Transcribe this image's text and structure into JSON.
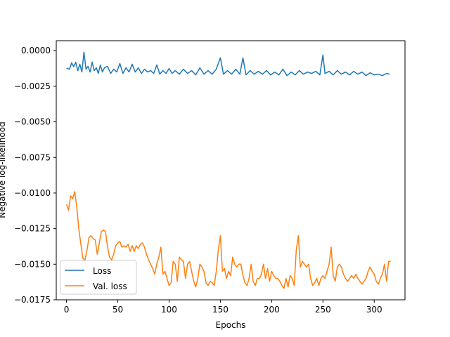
{
  "chart_data": {
    "type": "line",
    "title": "",
    "xlabel": "Epochs",
    "ylabel": "Negative log-likelihood",
    "xlim": [
      -10,
      330
    ],
    "ylim": [
      -0.0175,
      0.0007
    ],
    "xticks": [
      0,
      50,
      100,
      150,
      200,
      250,
      300
    ],
    "xtick_labels": [
      "0",
      "50",
      "100",
      "150",
      "200",
      "250",
      "300"
    ],
    "yticks": [
      0.0,
      -0.0025,
      -0.005,
      -0.0075,
      -0.01,
      -0.0125,
      -0.015,
      -0.0175
    ],
    "ytick_labels": [
      "0.0000",
      "−0.0025",
      "−0.0050",
      "−0.0075",
      "−0.0100",
      "−0.0125",
      "−0.0150",
      "−0.0175"
    ],
    "grid": false,
    "legend": {
      "placement": "lower-left"
    },
    "series": [
      {
        "name": "Loss",
        "color": "#1f77b4",
        "points": [
          [
            0,
            -0.00123
          ],
          [
            3,
            -0.0013
          ],
          [
            5,
            -0.00085
          ],
          [
            7,
            -0.00112
          ],
          [
            9,
            -0.00082
          ],
          [
            11,
            -0.0014
          ],
          [
            13,
            -0.00095
          ],
          [
            15,
            -0.0015
          ],
          [
            17,
            -0.0001
          ],
          [
            19,
            -0.0013
          ],
          [
            21,
            -0.0011
          ],
          [
            23,
            -0.0015
          ],
          [
            25,
            -0.0008
          ],
          [
            27,
            -0.0014
          ],
          [
            29,
            -0.0012
          ],
          [
            31,
            -0.0016
          ],
          [
            33,
            -0.001
          ],
          [
            35,
            -0.0015
          ],
          [
            37,
            -0.0012
          ],
          [
            40,
            -0.0011
          ],
          [
            43,
            -0.0016
          ],
          [
            46,
            -0.0013
          ],
          [
            49,
            -0.0015
          ],
          [
            52,
            -0.0009
          ],
          [
            55,
            -0.0016
          ],
          [
            58,
            -0.0012
          ],
          [
            61,
            -0.0015
          ],
          [
            64,
            -0.00095
          ],
          [
            67,
            -0.0015
          ],
          [
            70,
            -0.0012
          ],
          [
            73,
            -0.0016
          ],
          [
            76,
            -0.0013
          ],
          [
            79,
            -0.0015
          ],
          [
            82,
            -0.0014
          ],
          [
            85,
            -0.0016
          ],
          [
            88,
            -0.001
          ],
          [
            91,
            -0.00165
          ],
          [
            94,
            -0.0014
          ],
          [
            97,
            -0.0016
          ],
          [
            100,
            -0.00125
          ],
          [
            103,
            -0.0016
          ],
          [
            106,
            -0.0014
          ],
          [
            110,
            -0.00165
          ],
          [
            114,
            -0.0013
          ],
          [
            118,
            -0.0016
          ],
          [
            122,
            -0.0014
          ],
          [
            126,
            -0.0017
          ],
          [
            130,
            -0.0012
          ],
          [
            134,
            -0.00165
          ],
          [
            138,
            -0.0014
          ],
          [
            142,
            -0.00165
          ],
          [
            146,
            -0.0013
          ],
          [
            150,
            -0.0005
          ],
          [
            153,
            -0.00165
          ],
          [
            157,
            -0.0014
          ],
          [
            161,
            -0.00165
          ],
          [
            165,
            -0.0013
          ],
          [
            169,
            -0.00165
          ],
          [
            172,
            -0.0005
          ],
          [
            175,
            -0.0017
          ],
          [
            179,
            -0.0014
          ],
          [
            183,
            -0.00165
          ],
          [
            187,
            -0.00145
          ],
          [
            191,
            -0.00165
          ],
          [
            195,
            -0.0014
          ],
          [
            199,
            -0.0017
          ],
          [
            203,
            -0.0015
          ],
          [
            207,
            -0.0017
          ],
          [
            211,
            -0.0013
          ],
          [
            215,
            -0.00175
          ],
          [
            219,
            -0.0015
          ],
          [
            223,
            -0.0017
          ],
          [
            227,
            -0.0014
          ],
          [
            231,
            -0.00165
          ],
          [
            235,
            -0.0015
          ],
          [
            239,
            -0.0016
          ],
          [
            243,
            -0.00145
          ],
          [
            247,
            -0.0017
          ],
          [
            250,
            -0.0003
          ],
          [
            252,
            -0.0016
          ],
          [
            256,
            -0.00145
          ],
          [
            260,
            -0.0017
          ],
          [
            264,
            -0.0014
          ],
          [
            268,
            -0.00165
          ],
          [
            272,
            -0.0015
          ],
          [
            276,
            -0.0017
          ],
          [
            280,
            -0.00145
          ],
          [
            284,
            -0.00165
          ],
          [
            288,
            -0.0015
          ],
          [
            292,
            -0.00175
          ],
          [
            296,
            -0.00155
          ],
          [
            300,
            -0.0017
          ],
          [
            304,
            -0.00165
          ],
          [
            308,
            -0.00175
          ],
          [
            312,
            -0.0016
          ],
          [
            315,
            -0.00165
          ]
        ]
      },
      {
        "name": "Val. loss",
        "color": "#ff7f0e",
        "points": [
          [
            0,
            -0.0108
          ],
          [
            2,
            -0.0112
          ],
          [
            4,
            -0.0102
          ],
          [
            6,
            -0.0104
          ],
          [
            8,
            -0.0099
          ],
          [
            10,
            -0.011
          ],
          [
            12,
            -0.0125
          ],
          [
            14,
            -0.0136
          ],
          [
            16,
            -0.0146
          ],
          [
            18,
            -0.0147
          ],
          [
            20,
            -0.014
          ],
          [
            22,
            -0.0131
          ],
          [
            24,
            -0.013
          ],
          [
            26,
            -0.0132
          ],
          [
            28,
            -0.0133
          ],
          [
            30,
            -0.0143
          ],
          [
            32,
            -0.0135
          ],
          [
            34,
            -0.0127
          ],
          [
            36,
            -0.0126
          ],
          [
            38,
            -0.0127
          ],
          [
            40,
            -0.0138
          ],
          [
            42,
            -0.0145
          ],
          [
            44,
            -0.0147
          ],
          [
            46,
            -0.0143
          ],
          [
            48,
            -0.0137
          ],
          [
            50,
            -0.0135
          ],
          [
            52,
            -0.0134
          ],
          [
            54,
            -0.0138
          ],
          [
            56,
            -0.0137
          ],
          [
            58,
            -0.0138
          ],
          [
            60,
            -0.0136
          ],
          [
            62,
            -0.0141
          ],
          [
            64,
            -0.0137
          ],
          [
            66,
            -0.0141
          ],
          [
            68,
            -0.0137
          ],
          [
            70,
            -0.0139
          ],
          [
            72,
            -0.0136
          ],
          [
            74,
            -0.0135
          ],
          [
            76,
            -0.0138
          ],
          [
            78,
            -0.0143
          ],
          [
            80,
            -0.0147
          ],
          [
            82,
            -0.015
          ],
          [
            84,
            -0.0153
          ],
          [
            86,
            -0.0157
          ],
          [
            88,
            -0.015
          ],
          [
            90,
            -0.0145
          ],
          [
            92,
            -0.0138
          ],
          [
            94,
            -0.0157
          ],
          [
            96,
            -0.0155
          ],
          [
            98,
            -0.016
          ],
          [
            100,
            -0.0165
          ],
          [
            102,
            -0.0163
          ],
          [
            104,
            -0.0148
          ],
          [
            106,
            -0.015
          ],
          [
            108,
            -0.0162
          ],
          [
            110,
            -0.0145
          ],
          [
            112,
            -0.0147
          ],
          [
            114,
            -0.0148
          ],
          [
            116,
            -0.016
          ],
          [
            118,
            -0.015
          ],
          [
            120,
            -0.0148
          ],
          [
            122,
            -0.0155
          ],
          [
            124,
            -0.0162
          ],
          [
            126,
            -0.0166
          ],
          [
            128,
            -0.016
          ],
          [
            130,
            -0.015
          ],
          [
            132,
            -0.0152
          ],
          [
            134,
            -0.0155
          ],
          [
            136,
            -0.0163
          ],
          [
            138,
            -0.0165
          ],
          [
            140,
            -0.0162
          ],
          [
            142,
            -0.0163
          ],
          [
            144,
            -0.0165
          ],
          [
            146,
            -0.0155
          ],
          [
            148,
            -0.014
          ],
          [
            150,
            -0.013
          ],
          [
            152,
            -0.0155
          ],
          [
            154,
            -0.0153
          ],
          [
            156,
            -0.016
          ],
          [
            158,
            -0.0155
          ],
          [
            160,
            -0.0158
          ],
          [
            162,
            -0.0145
          ],
          [
            164,
            -0.015
          ],
          [
            166,
            -0.0152
          ],
          [
            168,
            -0.015
          ],
          [
            170,
            -0.015
          ],
          [
            172,
            -0.0158
          ],
          [
            174,
            -0.0163
          ],
          [
            176,
            -0.0165
          ],
          [
            178,
            -0.016
          ],
          [
            180,
            -0.015
          ],
          [
            182,
            -0.0162
          ],
          [
            184,
            -0.0165
          ],
          [
            186,
            -0.016
          ],
          [
            188,
            -0.016
          ],
          [
            190,
            -0.0157
          ],
          [
            192,
            -0.015
          ],
          [
            194,
            -0.016
          ],
          [
            196,
            -0.0153
          ],
          [
            198,
            -0.0162
          ],
          [
            200,
            -0.0155
          ],
          [
            202,
            -0.0158
          ],
          [
            204,
            -0.016
          ],
          [
            206,
            -0.016
          ],
          [
            208,
            -0.0162
          ],
          [
            210,
            -0.0165
          ],
          [
            212,
            -0.0167
          ],
          [
            214,
            -0.016
          ],
          [
            216,
            -0.0166
          ],
          [
            218,
            -0.0158
          ],
          [
            220,
            -0.016
          ],
          [
            222,
            -0.0165
          ],
          [
            224,
            -0.014
          ],
          [
            226,
            -0.013
          ],
          [
            228,
            -0.0152
          ],
          [
            230,
            -0.0148
          ],
          [
            232,
            -0.015
          ],
          [
            234,
            -0.0152
          ],
          [
            236,
            -0.015
          ],
          [
            238,
            -0.016
          ],
          [
            240,
            -0.0165
          ],
          [
            242,
            -0.0163
          ],
          [
            244,
            -0.016
          ],
          [
            246,
            -0.0165
          ],
          [
            248,
            -0.016
          ],
          [
            250,
            -0.0158
          ],
          [
            252,
            -0.016
          ],
          [
            254,
            -0.0155
          ],
          [
            256,
            -0.015
          ],
          [
            258,
            -0.0138
          ],
          [
            260,
            -0.0158
          ],
          [
            262,
            -0.0162
          ],
          [
            264,
            -0.0152
          ],
          [
            266,
            -0.015
          ],
          [
            268,
            -0.0152
          ],
          [
            270,
            -0.0157
          ],
          [
            272,
            -0.016
          ],
          [
            274,
            -0.0162
          ],
          [
            276,
            -0.016
          ],
          [
            278,
            -0.0158
          ],
          [
            280,
            -0.016
          ],
          [
            282,
            -0.0157
          ],
          [
            284,
            -0.016
          ],
          [
            286,
            -0.0162
          ],
          [
            288,
            -0.0164
          ],
          [
            290,
            -0.0162
          ],
          [
            292,
            -0.016
          ],
          [
            294,
            -0.0155
          ],
          [
            296,
            -0.0152
          ],
          [
            298,
            -0.0155
          ],
          [
            300,
            -0.0157
          ],
          [
            302,
            -0.0162
          ],
          [
            304,
            -0.0164
          ],
          [
            306,
            -0.016
          ],
          [
            308,
            -0.0157
          ],
          [
            310,
            -0.015
          ],
          [
            312,
            -0.0162
          ],
          [
            314,
            -0.0148
          ],
          [
            316,
            -0.0148
          ]
        ]
      }
    ]
  }
}
